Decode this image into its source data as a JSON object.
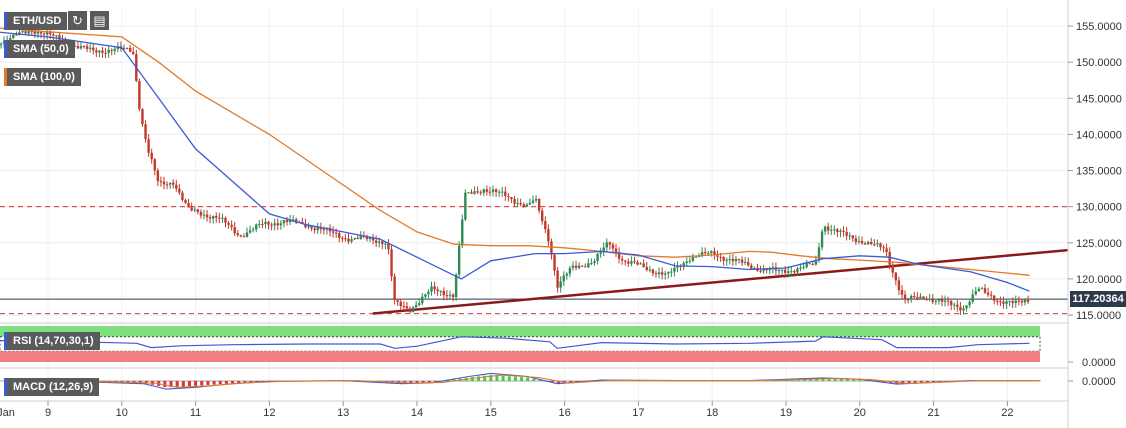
{
  "chart_data": [
    {
      "type": "candlestick",
      "symbol": "ETH/USD",
      "ylim": [
        115,
        157.5
      ],
      "y_ticks": [
        "155.0000",
        "150.0000",
        "145.0000",
        "140.0000",
        "135.0000",
        "130.0000",
        "125.0000",
        "120.0000",
        "115.0000"
      ],
      "x_ticks": [
        "Jan",
        "9",
        "10",
        "11",
        "12",
        "13",
        "14",
        "15",
        "16",
        "17",
        "18",
        "19",
        "20",
        "21",
        "22"
      ],
      "current_price_label": "117.20364",
      "horizontal_levels": [
        130,
        115.2
      ],
      "trendline": {
        "from": {
          "day": 13.4,
          "price": 115.2
        },
        "to": {
          "day": 22.3,
          "price": 123.5
        }
      },
      "indicators": [
        {
          "name": "SMA (50,0)",
          "color": "#3b5bd6"
        },
        {
          "name": "SMA (100,0)",
          "color": "#e07b2a"
        }
      ],
      "price_path": [
        [
          8.0,
          152.0
        ],
        [
          8.4,
          153.0
        ],
        [
          8.8,
          154.5
        ],
        [
          9.0,
          153.8
        ],
        [
          9.3,
          152.5
        ],
        [
          9.6,
          151.5
        ],
        [
          9.9,
          151.8
        ],
        [
          10.15,
          151.6
        ],
        [
          10.25,
          143.0
        ],
        [
          10.35,
          138.0
        ],
        [
          10.5,
          133.0
        ],
        [
          10.7,
          133.5
        ],
        [
          10.9,
          129.5
        ],
        [
          11.1,
          129.0
        ],
        [
          11.3,
          128.5
        ],
        [
          11.6,
          126.0
        ],
        [
          11.9,
          127.5
        ],
        [
          12.2,
          128.0
        ],
        [
          12.5,
          127.5
        ],
        [
          12.8,
          126.5
        ],
        [
          13.1,
          125.5
        ],
        [
          13.4,
          125.5
        ],
        [
          13.6,
          125.0
        ],
        [
          13.7,
          116.5
        ],
        [
          13.9,
          115.8
        ],
        [
          14.2,
          118.5
        ],
        [
          14.5,
          117.8
        ],
        [
          14.65,
          131.5
        ],
        [
          14.9,
          132.5
        ],
        [
          15.2,
          131.5
        ],
        [
          15.5,
          130.0
        ],
        [
          15.6,
          131.0
        ],
        [
          15.8,
          125.0
        ],
        [
          15.9,
          119.0
        ],
        [
          16.1,
          121.5
        ],
        [
          16.4,
          122.5
        ],
        [
          16.6,
          125.0
        ],
        [
          16.8,
          122.5
        ],
        [
          17.1,
          121.5
        ],
        [
          17.4,
          120.5
        ],
        [
          17.7,
          123.0
        ],
        [
          18.0,
          123.5
        ],
        [
          18.3,
          122.5
        ],
        [
          18.6,
          121.5
        ],
        [
          18.9,
          121.0
        ],
        [
          19.2,
          121.5
        ],
        [
          19.4,
          122.0
        ],
        [
          19.5,
          127.5
        ],
        [
          19.8,
          126.0
        ],
        [
          20.1,
          125.0
        ],
        [
          20.35,
          124.0
        ],
        [
          20.45,
          121.0
        ],
        [
          20.6,
          117.0
        ],
        [
          20.9,
          117.5
        ],
        [
          21.2,
          116.5
        ],
        [
          21.4,
          116.0
        ],
        [
          21.6,
          118.5
        ],
        [
          21.9,
          117.0
        ],
        [
          22.1,
          116.5
        ],
        [
          22.3,
          117.2
        ]
      ],
      "sma50_path": [
        [
          8.0,
          154.5
        ],
        [
          9.0,
          153.5
        ],
        [
          10.0,
          152.0
        ],
        [
          10.5,
          145.0
        ],
        [
          11.0,
          138.0
        ],
        [
          11.5,
          133.5
        ],
        [
          12.0,
          129.0
        ],
        [
          12.5,
          127.5
        ],
        [
          13.0,
          126.5
        ],
        [
          13.5,
          125.5
        ],
        [
          14.0,
          123.0
        ],
        [
          14.6,
          120.0
        ],
        [
          15.0,
          122.5
        ],
        [
          15.6,
          123.5
        ],
        [
          16.0,
          123.5
        ],
        [
          16.5,
          123.8
        ],
        [
          17.0,
          123.3
        ],
        [
          17.5,
          121.8
        ],
        [
          18.0,
          121.7
        ],
        [
          18.5,
          121.3
        ],
        [
          19.0,
          121.5
        ],
        [
          19.5,
          122.8
        ],
        [
          20.0,
          123.2
        ],
        [
          20.4,
          123.0
        ],
        [
          20.8,
          122.0
        ],
        [
          21.5,
          121.0
        ],
        [
          22.0,
          119.5
        ],
        [
          22.3,
          118.3
        ]
      ],
      "sma100_path": [
        [
          8.0,
          155.0
        ],
        [
          9.0,
          154.2
        ],
        [
          10.0,
          153.5
        ],
        [
          10.5,
          150.0
        ],
        [
          11.0,
          146.0
        ],
        [
          12.0,
          140.0
        ],
        [
          13.0,
          133.0
        ],
        [
          13.5,
          129.5
        ],
        [
          14.0,
          126.5
        ],
        [
          14.5,
          124.8
        ],
        [
          15.0,
          124.6
        ],
        [
          15.5,
          124.6
        ],
        [
          16.0,
          124.3
        ],
        [
          16.5,
          123.8
        ],
        [
          17.0,
          123.2
        ],
        [
          17.5,
          123.0
        ],
        [
          18.0,
          123.3
        ],
        [
          18.5,
          123.8
        ],
        [
          18.8,
          123.7
        ],
        [
          19.2,
          123.2
        ],
        [
          19.6,
          122.8
        ],
        [
          20.0,
          122.6
        ],
        [
          20.5,
          122.3
        ],
        [
          21.0,
          121.8
        ],
        [
          21.5,
          121.3
        ],
        [
          22.0,
          120.8
        ],
        [
          22.3,
          120.5
        ]
      ]
    },
    {
      "type": "line",
      "name": "RSI (14,70,30,1)",
      "y_tick": "0.0000",
      "overbought": 70,
      "oversold": 30,
      "ylim": [
        0,
        100
      ],
      "values": [
        [
          8.0,
          60
        ],
        [
          9.0,
          58
        ],
        [
          10.2,
          52
        ],
        [
          10.4,
          40
        ],
        [
          10.8,
          45
        ],
        [
          11.5,
          48
        ],
        [
          12.5,
          50
        ],
        [
          13.5,
          50
        ],
        [
          13.7,
          38
        ],
        [
          14.0,
          44
        ],
        [
          14.6,
          70
        ],
        [
          15.2,
          66
        ],
        [
          15.8,
          56
        ],
        [
          15.9,
          38
        ],
        [
          16.5,
          54
        ],
        [
          17.5,
          50
        ],
        [
          18.5,
          52
        ],
        [
          19.4,
          58
        ],
        [
          19.5,
          70
        ],
        [
          20.3,
          62
        ],
        [
          20.5,
          40
        ],
        [
          21.2,
          40
        ],
        [
          21.6,
          48
        ],
        [
          22.3,
          52
        ]
      ]
    },
    {
      "type": "histogram",
      "name": "MACD (12,26,9)",
      "y_tick": "0.0000",
      "ylim": [
        -1,
        1
      ],
      "values": [
        [
          9.0,
          0.05
        ],
        [
          10.3,
          -0.3
        ],
        [
          10.6,
          -0.9
        ],
        [
          11.0,
          -0.7
        ],
        [
          11.5,
          -0.3
        ],
        [
          12.0,
          -0.05
        ],
        [
          13.0,
          0.05
        ],
        [
          13.8,
          -0.3
        ],
        [
          14.2,
          -0.2
        ],
        [
          14.7,
          0.5
        ],
        [
          15.0,
          0.85
        ],
        [
          15.5,
          0.5
        ],
        [
          15.9,
          -0.3
        ],
        [
          16.5,
          0.1
        ],
        [
          17.5,
          0.05
        ],
        [
          18.5,
          0.05
        ],
        [
          19.5,
          0.35
        ],
        [
          20.0,
          0.2
        ],
        [
          20.5,
          -0.35
        ],
        [
          21.0,
          -0.15
        ],
        [
          21.5,
          0.05
        ],
        [
          22.3,
          0.05
        ]
      ]
    }
  ],
  "colors": {
    "bull": "#2e8b57",
    "bear": "#c0392b",
    "sma50": "#3b5bd6",
    "sma100": "#e07b2a",
    "trendline": "#8b1a1a",
    "level": "#e05050",
    "rsi_over": "#7fe07f",
    "rsi_under": "#f08080"
  }
}
